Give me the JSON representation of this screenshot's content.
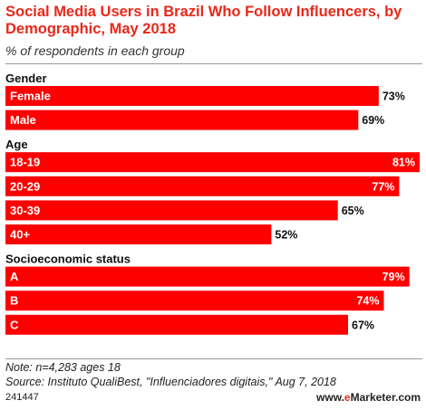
{
  "title": "Social Media Users in Brazil Who Follow Influencers, by Demographic, May 2018",
  "subtitle": "% of respondents in each group",
  "note": "Note: n=4,283 ages 18",
  "source": "Source: Instituto QualiBest, \"Influenciadores digitais,\" Aug 7, 2018",
  "chart_id": "241447",
  "brand": {
    "prefix": "www.",
    "e": "e",
    "rest": "Marketer",
    "suffix": ".com"
  },
  "colors": {
    "bar": "#ff0000",
    "title": "#e8281a"
  },
  "chart_data": {
    "type": "bar",
    "orientation": "horizontal",
    "unit": "%",
    "xlim": [
      0,
      81
    ],
    "groups": [
      {
        "name": "Gender",
        "items": [
          {
            "label": "Female",
            "value": 73
          },
          {
            "label": "Male",
            "value": 69
          }
        ]
      },
      {
        "name": "Age",
        "items": [
          {
            "label": "18-19",
            "value": 81
          },
          {
            "label": "20-29",
            "value": 77
          },
          {
            "label": "30-39",
            "value": 65
          },
          {
            "label": "40+",
            "value": 52
          }
        ]
      },
      {
        "name": "Socioeconomic status",
        "items": [
          {
            "label": "A",
            "value": 79
          },
          {
            "label": "B",
            "value": 74
          },
          {
            "label": "C",
            "value": 67
          }
        ]
      }
    ]
  }
}
